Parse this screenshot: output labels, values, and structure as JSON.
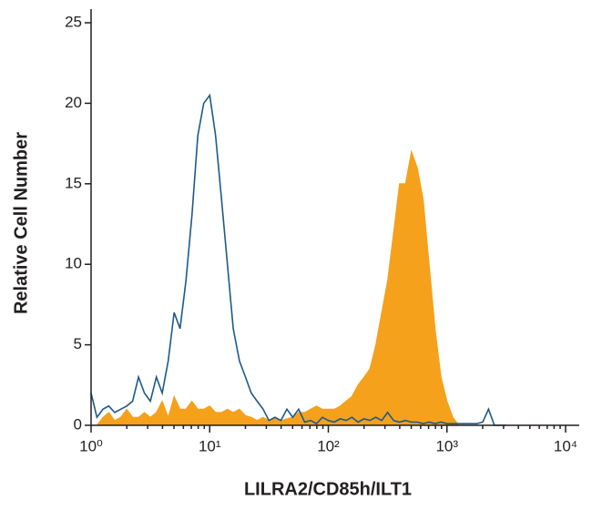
{
  "chart_data": {
    "type": "histogram-overlay",
    "x_label": "LILRA2/CD85h/ILT1",
    "y_label": "Relative Cell Number",
    "log_x": true,
    "xlim": [
      1,
      10000
    ],
    "xticks": [
      {
        "value": 1,
        "label": "10⁰"
      },
      {
        "value": 10,
        "label": "10¹"
      },
      {
        "value": 100,
        "label": "10²"
      },
      {
        "value": 1000,
        "label": "10³"
      },
      {
        "value": 10000,
        "label": "10⁴"
      }
    ],
    "ylim": [
      0,
      25
    ],
    "yticks": [
      0,
      5,
      10,
      15,
      20,
      25
    ],
    "x": [
      1,
      1.12,
      1.26,
      1.41,
      1.58,
      1.78,
      2,
      2.24,
      2.51,
      2.82,
      3.16,
      3.55,
      3.98,
      4.47,
      5.01,
      5.62,
      6.31,
      7.08,
      7.94,
      8.91,
      10,
      11.2,
      12.6,
      14.1,
      15.8,
      17.8,
      20,
      22.4,
      25.1,
      28.2,
      31.6,
      35.5,
      39.8,
      44.7,
      50.1,
      56.2,
      63.1,
      70.8,
      79.4,
      89.1,
      100,
      112,
      126,
      141,
      158,
      178,
      200,
      224,
      251,
      282,
      316,
      355,
      398,
      447,
      501,
      562,
      631,
      708,
      794,
      891,
      1000,
      1120,
      1260,
      1410,
      1580,
      1780,
      2000,
      2240,
      2510,
      2820,
      3160
    ],
    "series": [
      {
        "style": "fill",
        "color": "#f5a11c",
        "values": [
          0,
          0,
          0.5,
          0.8,
          0.3,
          0.5,
          1,
          0.5,
          0.5,
          0.8,
          0.5,
          0.8,
          1.5,
          0.5,
          1.8,
          1,
          1,
          1.5,
          1,
          1,
          1.2,
          0.8,
          0.8,
          1,
          0.8,
          1,
          0.6,
          0.5,
          0.3,
          0.5,
          0.3,
          0.5,
          0.3,
          0.4,
          0.5,
          0.8,
          0.8,
          1,
          1.2,
          1,
          1,
          1,
          1.2,
          1.5,
          1.8,
          2.5,
          3,
          3.5,
          5,
          7,
          9,
          12,
          15,
          15,
          17,
          16,
          14,
          10,
          6,
          3,
          1.5,
          0.5,
          0,
          0,
          0,
          0,
          0,
          0,
          0,
          0,
          0
        ]
      },
      {
        "style": "line",
        "color": "#1c5a8a",
        "values": [
          2,
          0.5,
          1,
          1.2,
          0.8,
          1,
          1.2,
          1.5,
          3,
          2,
          1.5,
          3,
          2,
          4,
          7,
          6,
          9,
          13,
          18,
          20,
          20.5,
          18,
          14,
          10,
          6,
          4,
          3,
          2,
          1.5,
          1,
          0.3,
          0.5,
          0.3,
          1,
          0.5,
          1,
          0.2,
          0.3,
          0.1,
          0.5,
          0.3,
          0.2,
          0.4,
          0.3,
          0.5,
          0.2,
          0.4,
          0.3,
          0.5,
          0.3,
          0.8,
          0.3,
          0.2,
          0.3,
          0.2,
          0.2,
          0.1,
          0.2,
          0.1,
          0.2,
          0.1,
          0.1,
          0.1,
          0.1,
          0.1,
          0.1,
          0.2,
          1,
          0,
          0,
          0
        ]
      }
    ]
  }
}
